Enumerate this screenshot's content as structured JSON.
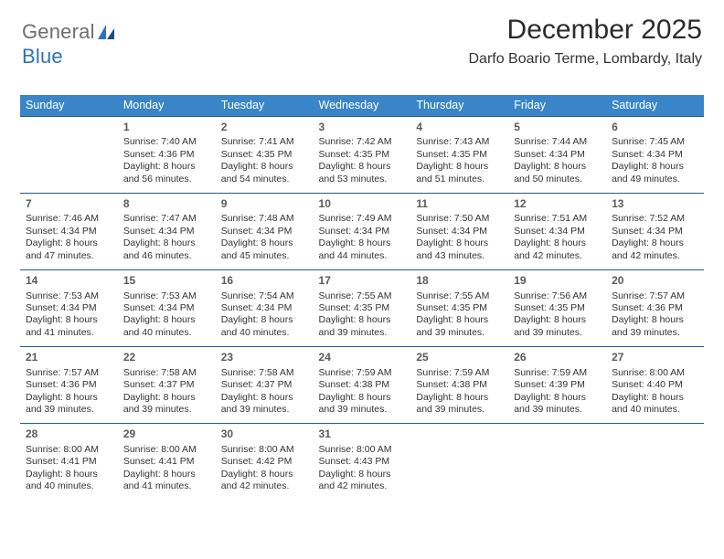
{
  "logo": {
    "text1": "General",
    "text2": "Blue",
    "text1_color": "#6e6e6e",
    "text2_color": "#2f72b6"
  },
  "title": "December 2025",
  "subtitle": "Darfo Boario Terme, Lombardy, Italy",
  "styling": {
    "header_bg": "#3a85c8",
    "header_text": "#ffffff",
    "row_divider": "#295a8a",
    "body_text": "#333333",
    "daynum_color": "#5a5a5a",
    "page_bg": "#ffffff",
    "title_fontsize": 30,
    "subtitle_fontsize": 16,
    "th_fontsize": 12.5,
    "cell_fontsize": 10.5
  },
  "day_names": [
    "Sunday",
    "Monday",
    "Tuesday",
    "Wednesday",
    "Thursday",
    "Friday",
    "Saturday"
  ],
  "weeks": [
    [
      null,
      {
        "n": "1",
        "sr": "7:40 AM",
        "ss": "4:36 PM",
        "dl": "8 hours and 56 minutes."
      },
      {
        "n": "2",
        "sr": "7:41 AM",
        "ss": "4:35 PM",
        "dl": "8 hours and 54 minutes."
      },
      {
        "n": "3",
        "sr": "7:42 AM",
        "ss": "4:35 PM",
        "dl": "8 hours and 53 minutes."
      },
      {
        "n": "4",
        "sr": "7:43 AM",
        "ss": "4:35 PM",
        "dl": "8 hours and 51 minutes."
      },
      {
        "n": "5",
        "sr": "7:44 AM",
        "ss": "4:34 PM",
        "dl": "8 hours and 50 minutes."
      },
      {
        "n": "6",
        "sr": "7:45 AM",
        "ss": "4:34 PM",
        "dl": "8 hours and 49 minutes."
      }
    ],
    [
      {
        "n": "7",
        "sr": "7:46 AM",
        "ss": "4:34 PM",
        "dl": "8 hours and 47 minutes."
      },
      {
        "n": "8",
        "sr": "7:47 AM",
        "ss": "4:34 PM",
        "dl": "8 hours and 46 minutes."
      },
      {
        "n": "9",
        "sr": "7:48 AM",
        "ss": "4:34 PM",
        "dl": "8 hours and 45 minutes."
      },
      {
        "n": "10",
        "sr": "7:49 AM",
        "ss": "4:34 PM",
        "dl": "8 hours and 44 minutes."
      },
      {
        "n": "11",
        "sr": "7:50 AM",
        "ss": "4:34 PM",
        "dl": "8 hours and 43 minutes."
      },
      {
        "n": "12",
        "sr": "7:51 AM",
        "ss": "4:34 PM",
        "dl": "8 hours and 42 minutes."
      },
      {
        "n": "13",
        "sr": "7:52 AM",
        "ss": "4:34 PM",
        "dl": "8 hours and 42 minutes."
      }
    ],
    [
      {
        "n": "14",
        "sr": "7:53 AM",
        "ss": "4:34 PM",
        "dl": "8 hours and 41 minutes."
      },
      {
        "n": "15",
        "sr": "7:53 AM",
        "ss": "4:34 PM",
        "dl": "8 hours and 40 minutes."
      },
      {
        "n": "16",
        "sr": "7:54 AM",
        "ss": "4:34 PM",
        "dl": "8 hours and 40 minutes."
      },
      {
        "n": "17",
        "sr": "7:55 AM",
        "ss": "4:35 PM",
        "dl": "8 hours and 39 minutes."
      },
      {
        "n": "18",
        "sr": "7:55 AM",
        "ss": "4:35 PM",
        "dl": "8 hours and 39 minutes."
      },
      {
        "n": "19",
        "sr": "7:56 AM",
        "ss": "4:35 PM",
        "dl": "8 hours and 39 minutes."
      },
      {
        "n": "20",
        "sr": "7:57 AM",
        "ss": "4:36 PM",
        "dl": "8 hours and 39 minutes."
      }
    ],
    [
      {
        "n": "21",
        "sr": "7:57 AM",
        "ss": "4:36 PM",
        "dl": "8 hours and 39 minutes."
      },
      {
        "n": "22",
        "sr": "7:58 AM",
        "ss": "4:37 PM",
        "dl": "8 hours and 39 minutes."
      },
      {
        "n": "23",
        "sr": "7:58 AM",
        "ss": "4:37 PM",
        "dl": "8 hours and 39 minutes."
      },
      {
        "n": "24",
        "sr": "7:59 AM",
        "ss": "4:38 PM",
        "dl": "8 hours and 39 minutes."
      },
      {
        "n": "25",
        "sr": "7:59 AM",
        "ss": "4:38 PM",
        "dl": "8 hours and 39 minutes."
      },
      {
        "n": "26",
        "sr": "7:59 AM",
        "ss": "4:39 PM",
        "dl": "8 hours and 39 minutes."
      },
      {
        "n": "27",
        "sr": "8:00 AM",
        "ss": "4:40 PM",
        "dl": "8 hours and 40 minutes."
      }
    ],
    [
      {
        "n": "28",
        "sr": "8:00 AM",
        "ss": "4:41 PM",
        "dl": "8 hours and 40 minutes."
      },
      {
        "n": "29",
        "sr": "8:00 AM",
        "ss": "4:41 PM",
        "dl": "8 hours and 41 minutes."
      },
      {
        "n": "30",
        "sr": "8:00 AM",
        "ss": "4:42 PM",
        "dl": "8 hours and 42 minutes."
      },
      {
        "n": "31",
        "sr": "8:00 AM",
        "ss": "4:43 PM",
        "dl": "8 hours and 42 minutes."
      },
      null,
      null,
      null
    ]
  ],
  "labels": {
    "sunrise": "Sunrise: ",
    "sunset": "Sunset: ",
    "daylight": "Daylight: "
  }
}
